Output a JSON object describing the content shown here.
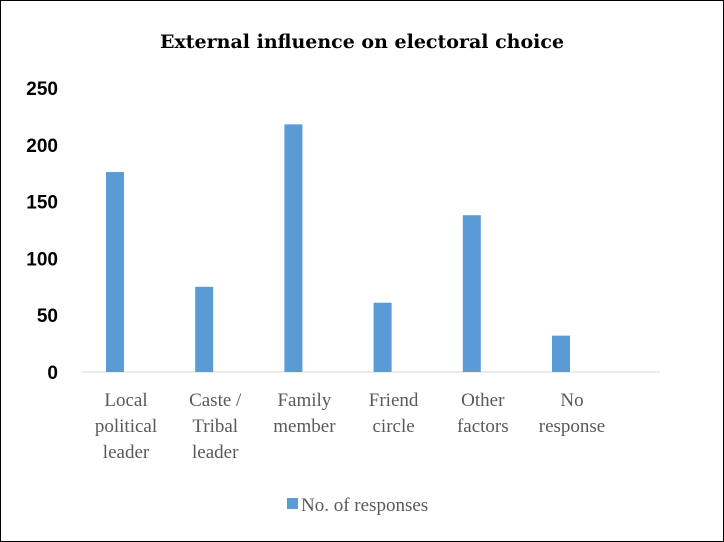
{
  "chart_data": {
    "type": "bar",
    "title": "External influence on electoral choice",
    "categories": [
      [
        "Local",
        "political",
        "leader"
      ],
      [
        "Caste /",
        "Tribal",
        "leader"
      ],
      [
        "Family",
        "member"
      ],
      [
        "Friend",
        "circle"
      ],
      [
        "Other",
        "factors"
      ],
      [
        "No",
        "response"
      ]
    ],
    "series": [
      {
        "name": "No. of responses",
        "values": [
          176,
          75,
          218,
          61,
          138,
          32
        ],
        "color": "#5b9bd5"
      }
    ],
    "ylim": [
      0,
      250
    ],
    "yticks": [
      "0",
      "50",
      "100",
      "150",
      "200",
      "250"
    ],
    "grid": false,
    "legend_position": "bottom"
  }
}
